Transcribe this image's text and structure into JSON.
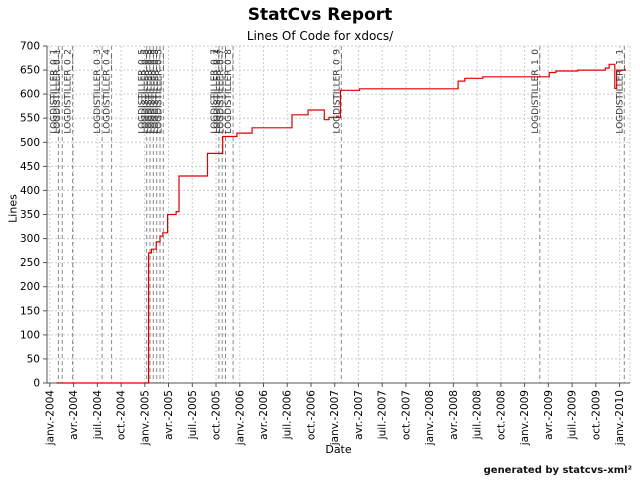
{
  "header": {
    "title": "StatCvs Report",
    "subtitle": "Lines Of Code for xdocs/"
  },
  "footer": {
    "credit": "generated by statcvs-xml²"
  },
  "chart_data": {
    "type": "line",
    "title": "StatCvs Report",
    "subtitle": "Lines Of Code for xdocs/",
    "xlabel": "Date",
    "ylabel": "Lines",
    "legend_position": "none",
    "grid": "dashed",
    "x_tick_labels": [
      "janv.-2004",
      "avr.-2004",
      "juil.-2004",
      "oct.-2004",
      "janv.-2005",
      "avr.-2005",
      "juil.-2005",
      "oct.-2005",
      "janv.-2006",
      "avr.-2006",
      "juil.-2006",
      "oct.-2006",
      "janv.-2007",
      "avr.-2007",
      "juil.-2007",
      "oct.-2007",
      "janv.-2008",
      "avr.-2008",
      "juil.-2008",
      "oct.-2008",
      "janv.-2009",
      "avr.-2009",
      "juil.-2009",
      "oct.-2009",
      "janv.-2010"
    ],
    "x_tick_start_year": 2004,
    "x_tick_step_years": 0.25,
    "xlim": [
      2003.97,
      2010.11
    ],
    "ylim": [
      0,
      700
    ],
    "y_tick_step": 50,
    "colors": {
      "line": "#dd0000",
      "grid": "#cccccc",
      "tag_line": "#8a8a8a",
      "axis": "#555555",
      "tick_text": "#000000",
      "tag_text": "#333333"
    },
    "series": [
      {
        "name": "Lines of Code",
        "step": true,
        "points": [
          [
            2004.07,
            0
          ],
          [
            2005.04,
            270
          ],
          [
            2005.07,
            278
          ],
          [
            2005.12,
            293
          ],
          [
            2005.16,
            305
          ],
          [
            2005.19,
            312
          ],
          [
            2005.24,
            350
          ],
          [
            2005.33,
            356
          ],
          [
            2005.36,
            430
          ],
          [
            2005.66,
            477
          ],
          [
            2005.82,
            512
          ],
          [
            2005.97,
            519
          ],
          [
            2006.13,
            530
          ],
          [
            2006.55,
            557
          ],
          [
            2006.72,
            567
          ],
          [
            2006.89,
            547
          ],
          [
            2006.94,
            552
          ],
          [
            2007.06,
            608
          ],
          [
            2007.26,
            611
          ],
          [
            2008.3,
            627
          ],
          [
            2008.37,
            633
          ],
          [
            2008.56,
            636
          ],
          [
            2009.26,
            645
          ],
          [
            2009.33,
            648
          ],
          [
            2009.56,
            650
          ],
          [
            2009.85,
            654
          ],
          [
            2009.89,
            662
          ],
          [
            2009.95,
            612
          ],
          [
            2009.97,
            650
          ],
          [
            2010.06,
            652
          ]
        ]
      }
    ],
    "tags": [
      {
        "label": "LOGDISTILLER_0_1",
        "x": 2004.09
      },
      {
        "label": "LOGDISTILLER_0_1",
        "x": 2004.13
      },
      {
        "label": "LOGDISTILLER_0_2",
        "x": 2004.24
      },
      {
        "label": "LOGDISTILLER_0_3",
        "x": 2004.55
      },
      {
        "label": "LOGDISTILLER_0_4",
        "x": 2004.65
      },
      {
        "label": "LOGDISTILLER_0_5",
        "x": 2005.02
      },
      {
        "label": "LOGDISTILLER_0_5",
        "x": 2005.055
      },
      {
        "label": "LOGDISTILLER_0_5",
        "x": 2005.09
      },
      {
        "label": "LOGDISTILLER_0_5",
        "x": 2005.125
      },
      {
        "label": "LOGDISTILLER_0_5",
        "x": 2005.16
      },
      {
        "label": "LOGDISTILLER_0_5",
        "x": 2005.195
      },
      {
        "label": "LOGDISTILLER_0_7",
        "x": 2005.78
      },
      {
        "label": "LOGDISTILLER_0_7",
        "x": 2005.815
      },
      {
        "label": "LOGDISTILLER_0_7",
        "x": 2005.85
      },
      {
        "label": "LOGDISTILLER_0_8",
        "x": 2005.93
      },
      {
        "label": "LOGDISTILLER_0_9",
        "x": 2007.07
      },
      {
        "label": "LOGDISTILLER_1_0",
        "x": 2009.16
      },
      {
        "label": "LOGDISTILLER_1_1",
        "x": 2010.05
      }
    ]
  }
}
